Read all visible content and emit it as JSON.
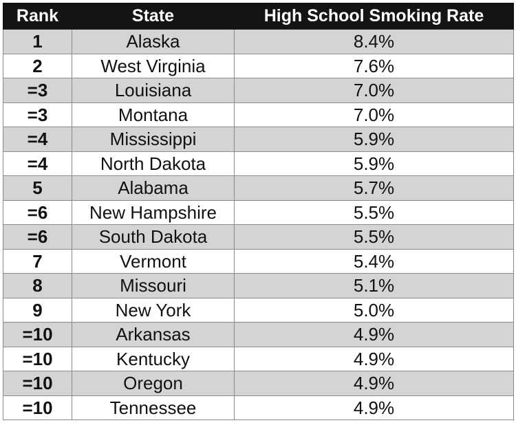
{
  "table": {
    "columns": [
      "Rank",
      "State",
      "High School Smoking Rate"
    ],
    "rows": [
      [
        "1",
        "Alaska",
        "8.4%"
      ],
      [
        "2",
        "West Virginia",
        "7.6%"
      ],
      [
        "=3",
        "Louisiana",
        "7.0%"
      ],
      [
        "=3",
        "Montana",
        "7.0%"
      ],
      [
        "=4",
        "Mississippi",
        "5.9%"
      ],
      [
        "=4",
        "North Dakota",
        "5.9%"
      ],
      [
        "5",
        "Alabama",
        "5.7%"
      ],
      [
        "=6",
        "New Hampshire",
        "5.5%"
      ],
      [
        "=6",
        "South Dakota",
        "5.5%"
      ],
      [
        "7",
        "Vermont",
        "5.4%"
      ],
      [
        "8",
        "Missouri",
        "5.1%"
      ],
      [
        "9",
        "New York",
        "5.0%"
      ],
      [
        "=10",
        "Arkansas",
        "4.9%"
      ],
      [
        "=10",
        "Kentucky",
        "4.9%"
      ],
      [
        "=10",
        "Oregon",
        "4.9%"
      ],
      [
        "=10",
        "Tennessee",
        "4.9%"
      ]
    ]
  }
}
